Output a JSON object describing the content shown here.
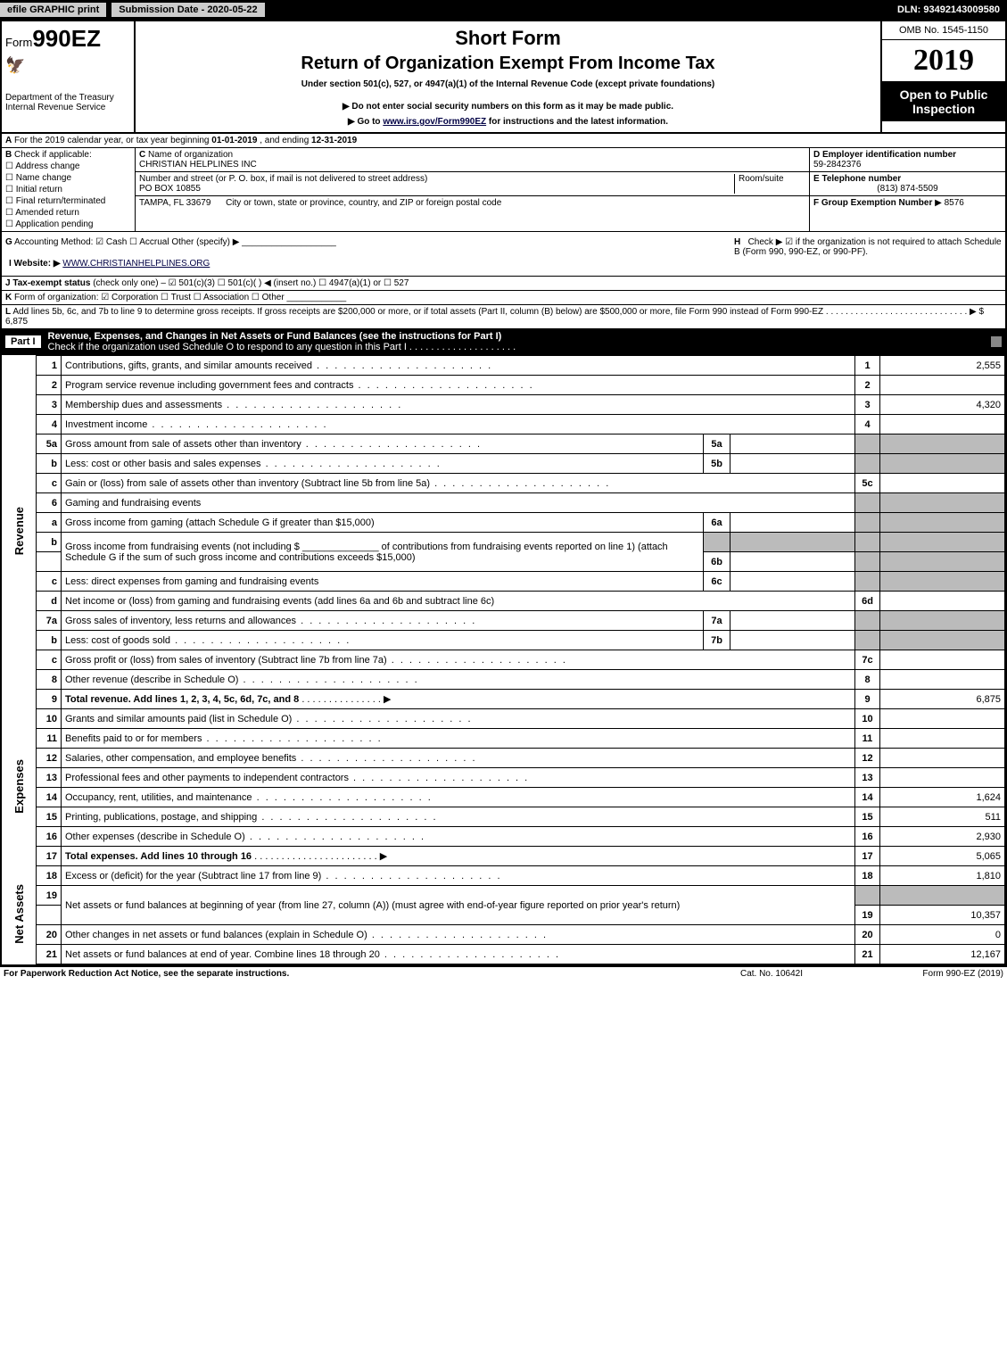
{
  "topbar": {
    "efile_btn": "efile GRAPHIC print",
    "submission": "Submission Date - 2020-05-22",
    "dln": "DLN: 93492143009580"
  },
  "header": {
    "form_prefix": "Form",
    "form_number": "990EZ",
    "dept1": "Department of the Treasury",
    "dept2": "Internal Revenue Service",
    "title1": "Short Form",
    "title2": "Return of Organization Exempt From Income Tax",
    "subtitle": "Under section 501(c), 527, or 4947(a)(1) of the Internal Revenue Code (except private foundations)",
    "note1": "▶ Do not enter social security numbers on this form as it may be made public.",
    "note2_pre": "▶ Go to ",
    "note2_link": "www.irs.gov/Form990EZ",
    "note2_post": " for instructions and the latest information.",
    "omb": "OMB No. 1545-1150",
    "year": "2019",
    "open": "Open to Public Inspection"
  },
  "lineA": {
    "label": "A",
    "text_pre": "For the 2019 calendar year, or tax year beginning ",
    "begin": "01-01-2019",
    "mid": " , and ending ",
    "end": "12-31-2019"
  },
  "blockB": {
    "label": "B",
    "heading": "Check if applicable:",
    "items": [
      "Address change",
      "Name change",
      "Initial return",
      "Final return/terminated",
      "Amended return",
      "Application pending"
    ]
  },
  "blockC": {
    "label": "C",
    "name_label": "Name of organization",
    "name": "CHRISTIAN HELPLINES INC",
    "addr_label": "Number and street (or P. O. box, if mail is not delivered to street address)",
    "addr": "PO BOX 10855",
    "room_label": "Room/suite",
    "city_label": "City or town, state or province, country, and ZIP or foreign postal code",
    "city": "TAMPA, FL  33679"
  },
  "blockD": {
    "label": "D Employer identification number",
    "value": "59-2842376"
  },
  "blockE": {
    "label": "E Telephone number",
    "value": "(813) 874-5509"
  },
  "blockF": {
    "label": "F Group Exemption Number",
    "value": "▶ 8576"
  },
  "lineG": {
    "label": "G",
    "text": "Accounting Method:   ☑ Cash   ☐ Accrual   Other (specify) ▶",
    "h_label": "H",
    "h_text": "Check ▶ ☑ if the organization is not required to attach Schedule B (Form 990, 990-EZ, or 990-PF)."
  },
  "lineI": {
    "label": "I Website: ▶",
    "value": "WWW.CHRISTIANHELPLINES.ORG"
  },
  "lineJ": {
    "label": "J Tax-exempt status",
    "text": "(check only one) – ☑ 501(c)(3) ☐ 501(c)( ) ◀ (insert no.) ☐ 4947(a)(1) or ☐ 527"
  },
  "lineK": {
    "label": "K",
    "text": "Form of organization: ☑ Corporation  ☐ Trust  ☐ Association  ☐ Other"
  },
  "lineL": {
    "label": "L",
    "text": "Add lines 5b, 6c, and 7b to line 9 to determine gross receipts. If gross receipts are $200,000 or more, or if total assets (Part II, column (B) below) are $500,000 or more, file Form 990 instead of Form 990-EZ",
    "amount": "▶ $ 6,875"
  },
  "part1": {
    "label": "Part I",
    "title": "Revenue, Expenses, and Changes in Net Assets or Fund Balances (see the instructions for Part I)",
    "check_text": "Check if the organization used Schedule O to respond to any question in this Part I"
  },
  "sections": {
    "revenue_label": "Revenue",
    "expenses_label": "Expenses",
    "netassets_label": "Net Assets"
  },
  "rows": {
    "r1": {
      "n": "1",
      "d": "Contributions, gifts, grants, and similar amounts received",
      "rn": "1",
      "v": "2,555"
    },
    "r2": {
      "n": "2",
      "d": "Program service revenue including government fees and contracts",
      "rn": "2",
      "v": ""
    },
    "r3": {
      "n": "3",
      "d": "Membership dues and assessments",
      "rn": "3",
      "v": "4,320"
    },
    "r4": {
      "n": "4",
      "d": "Investment income",
      "rn": "4",
      "v": ""
    },
    "r5a": {
      "n": "5a",
      "d": "Gross amount from sale of assets other than inventory",
      "mn": "5a",
      "mv": ""
    },
    "r5b": {
      "n": "b",
      "d": "Less: cost or other basis and sales expenses",
      "mn": "5b",
      "mv": ""
    },
    "r5c": {
      "n": "c",
      "d": "Gain or (loss) from sale of assets other than inventory (Subtract line 5b from line 5a)",
      "rn": "5c",
      "v": ""
    },
    "r6": {
      "n": "6",
      "d": "Gaming and fundraising events"
    },
    "r6a": {
      "n": "a",
      "d": "Gross income from gaming (attach Schedule G if greater than $15,000)",
      "mn": "6a",
      "mv": ""
    },
    "r6b": {
      "n": "b",
      "d": "Gross income from fundraising events (not including $ ______________ of contributions from fundraising events reported on line 1) (attach Schedule G if the sum of such gross income and contributions exceeds $15,000)",
      "mn": "6b",
      "mv": ""
    },
    "r6c": {
      "n": "c",
      "d": "Less: direct expenses from gaming and fundraising events",
      "mn": "6c",
      "mv": ""
    },
    "r6d": {
      "n": "d",
      "d": "Net income or (loss) from gaming and fundraising events (add lines 6a and 6b and subtract line 6c)",
      "rn": "6d",
      "v": ""
    },
    "r7a": {
      "n": "7a",
      "d": "Gross sales of inventory, less returns and allowances",
      "mn": "7a",
      "mv": ""
    },
    "r7b": {
      "n": "b",
      "d": "Less: cost of goods sold",
      "mn": "7b",
      "mv": ""
    },
    "r7c": {
      "n": "c",
      "d": "Gross profit or (loss) from sales of inventory (Subtract line 7b from line 7a)",
      "rn": "7c",
      "v": ""
    },
    "r8": {
      "n": "8",
      "d": "Other revenue (describe in Schedule O)",
      "rn": "8",
      "v": ""
    },
    "r9": {
      "n": "9",
      "d": "Total revenue. Add lines 1, 2, 3, 4, 5c, 6d, 7c, and 8",
      "rn": "9",
      "v": "6,875"
    },
    "r10": {
      "n": "10",
      "d": "Grants and similar amounts paid (list in Schedule O)",
      "rn": "10",
      "v": ""
    },
    "r11": {
      "n": "11",
      "d": "Benefits paid to or for members",
      "rn": "11",
      "v": ""
    },
    "r12": {
      "n": "12",
      "d": "Salaries, other compensation, and employee benefits",
      "rn": "12",
      "v": ""
    },
    "r13": {
      "n": "13",
      "d": "Professional fees and other payments to independent contractors",
      "rn": "13",
      "v": ""
    },
    "r14": {
      "n": "14",
      "d": "Occupancy, rent, utilities, and maintenance",
      "rn": "14",
      "v": "1,624"
    },
    "r15": {
      "n": "15",
      "d": "Printing, publications, postage, and shipping",
      "rn": "15",
      "v": "511"
    },
    "r16": {
      "n": "16",
      "d": "Other expenses (describe in Schedule O)",
      "rn": "16",
      "v": "2,930"
    },
    "r17": {
      "n": "17",
      "d": "Total expenses. Add lines 10 through 16",
      "rn": "17",
      "v": "5,065"
    },
    "r18": {
      "n": "18",
      "d": "Excess or (deficit) for the year (Subtract line 17 from line 9)",
      "rn": "18",
      "v": "1,810"
    },
    "r19": {
      "n": "19",
      "d": "Net assets or fund balances at beginning of year (from line 27, column (A)) (must agree with end-of-year figure reported on prior year's return)",
      "rn": "19",
      "v": "10,357"
    },
    "r20": {
      "n": "20",
      "d": "Other changes in net assets or fund balances (explain in Schedule O)",
      "rn": "20",
      "v": "0"
    },
    "r21": {
      "n": "21",
      "d": "Net assets or fund balances at end of year. Combine lines 18 through 20",
      "rn": "21",
      "v": "12,167"
    }
  },
  "footer": {
    "left": "For Paperwork Reduction Act Notice, see the separate instructions.",
    "mid": "Cat. No. 10642I",
    "right": "Form 990-EZ (2019)"
  },
  "colors": {
    "black": "#000000",
    "white": "#ffffff",
    "grey_btn": "#cccccc",
    "shade": "#bbbbbb",
    "link": "#000044"
  }
}
